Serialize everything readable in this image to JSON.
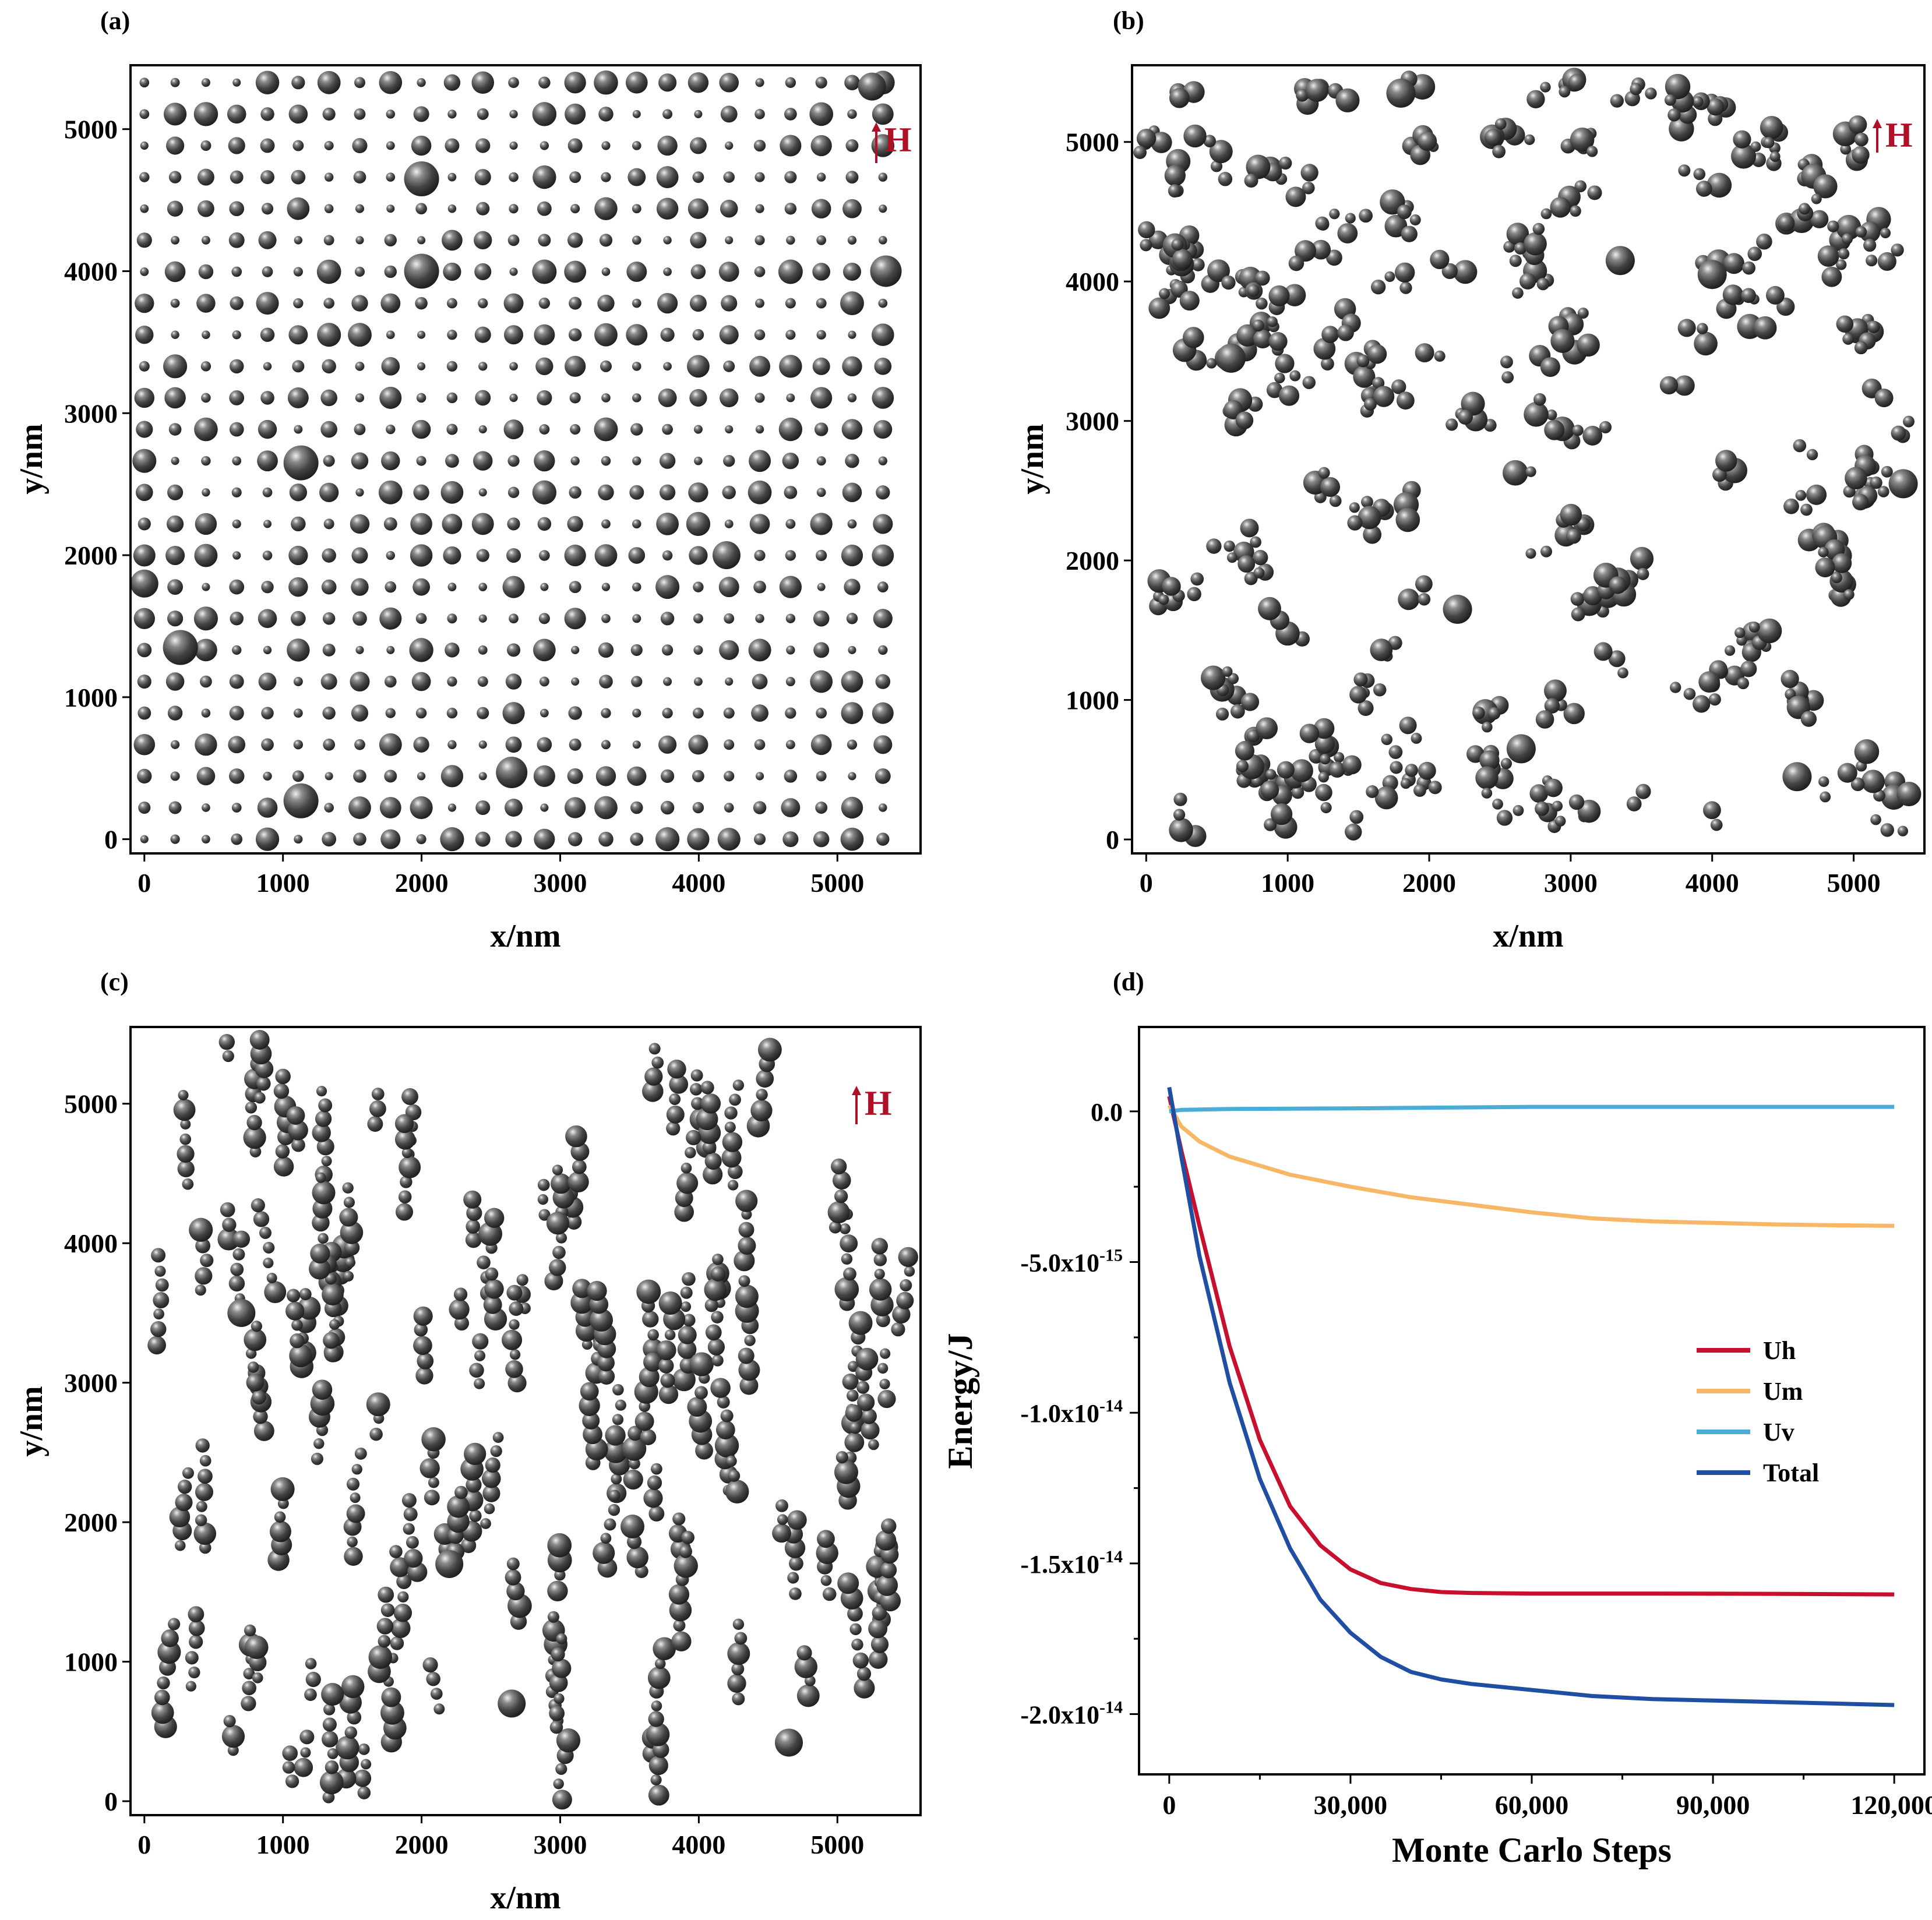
{
  "figure": {
    "panels": [
      {
        "label": "(a)",
        "xlabel": "x/nm",
        "ylabel": "y/nm",
        "field_label": "H",
        "arrangement": "regular square lattice"
      },
      {
        "label": "(b)",
        "xlabel": "x/nm",
        "ylabel": "y/nm",
        "field_label": "H",
        "arrangement": "random clusters"
      },
      {
        "label": "(c)",
        "xlabel": "x/nm",
        "ylabel": "y/nm",
        "field_label": "H",
        "arrangement": "chains aligned with field"
      },
      {
        "label": "(d)",
        "xlabel": "Monte Carlo Steps",
        "ylabel": "Energy/J"
      }
    ]
  },
  "chart_data": [
    {
      "type": "scatter",
      "panel": "(a)",
      "title": "",
      "xlabel": "x/nm",
      "ylabel": "y/nm",
      "xlim": [
        -100,
        5600
      ],
      "ylim": [
        -100,
        5450
      ],
      "xticks": [
        0,
        1000,
        2000,
        3000,
        4000,
        5000
      ],
      "yticks": [
        0,
        1000,
        2000,
        3000,
        4000,
        5000
      ],
      "particle_grid": {
        "x_start": 0,
        "y_start": 0,
        "spacing": 222,
        "columns": 25,
        "rows": 25
      },
      "large_particles": [
        [
          2000,
          4650
        ],
        [
          2000,
          4000
        ],
        [
          1130,
          2650
        ],
        [
          0,
          1800
        ],
        [
          260,
          1350
        ],
        [
          2650,
          470
        ],
        [
          1130,
          270
        ],
        [
          5250,
          5300
        ],
        [
          4200,
          2000
        ],
        [
          5350,
          4000
        ]
      ],
      "annotation": "H"
    },
    {
      "type": "scatter",
      "panel": "(b)",
      "title": "",
      "xlabel": "x/nm",
      "ylabel": "y/nm",
      "xlim": [
        -100,
        5500
      ],
      "ylim": [
        -100,
        5550
      ],
      "xticks": [
        0,
        1000,
        2000,
        3000,
        4000,
        5000
      ],
      "yticks": [
        0,
        1000,
        2000,
        3000,
        4000,
        5000
      ],
      "clusters": [
        [
          600,
          3450
        ],
        [
          2200,
          1650
        ],
        [
          2650,
          650
        ],
        [
          4600,
          450
        ],
        [
          5350,
          2550
        ],
        [
          3350,
          4150
        ],
        [
          1800,
          5350
        ],
        [
          4000,
          4050
        ]
      ],
      "annotation": "H"
    },
    {
      "type": "scatter",
      "panel": "(c)",
      "title": "",
      "xlabel": "x/nm",
      "ylabel": "y/nm",
      "xlim": [
        -100,
        5600
      ],
      "ylim": [
        -100,
        5550
      ],
      "xticks": [
        0,
        1000,
        2000,
        3000,
        4000,
        5000
      ],
      "yticks": [
        0,
        1000,
        2000,
        3000,
        4000,
        5000
      ],
      "chain_orientation": "vertical",
      "annotation": "H"
    },
    {
      "type": "line",
      "panel": "(d)",
      "title": "",
      "xlabel": "Monte Carlo Steps",
      "ylabel": "Energy/J",
      "xlim": [
        -5000,
        125000
      ],
      "ylim": [
        -2.2e-14,
        2.8e-15
      ],
      "xticks": [
        0,
        30000,
        60000,
        90000,
        120000
      ],
      "xtick_labels": [
        "0",
        "30,000",
        "60,000",
        "90,000",
        "120,000"
      ],
      "yticks": [
        0,
        -5e-15,
        -1e-14,
        -1.5e-14,
        -2e-14
      ],
      "ytick_labels": [
        {
          "mantissa": "0.0",
          "exponent": ""
        },
        {
          "mantissa": "-5.0x10",
          "exponent": "-15"
        },
        {
          "mantissa": "-1.0x10",
          "exponent": "-14"
        },
        {
          "mantissa": "-1.5x10",
          "exponent": "-14"
        },
        {
          "mantissa": "-2.0x10",
          "exponent": "-14"
        }
      ],
      "legend_position": "right",
      "series": [
        {
          "name": "Uh",
          "color": "#c8102e",
          "x": [
            0,
            2000,
            5000,
            10000,
            15000,
            20000,
            25000,
            30000,
            35000,
            40000,
            45000,
            50000,
            60000,
            80000,
            100000,
            120000
          ],
          "y": [
            5e-16,
            -1.3e-15,
            -3.8e-15,
            -7.8e-15,
            -1.09e-14,
            -1.31e-14,
            -1.44e-14,
            -1.52e-14,
            -1.565e-14,
            -1.585e-14,
            -1.595e-14,
            -1.598e-14,
            -1.6e-14,
            -1.6e-14,
            -1.601e-14,
            -1.603e-14
          ]
        },
        {
          "name": "Um",
          "color": "#f7b766",
          "x": [
            0,
            2000,
            5000,
            10000,
            20000,
            30000,
            40000,
            50000,
            60000,
            70000,
            80000,
            90000,
            100000,
            110000,
            120000
          ],
          "y": [
            2e-16,
            -5e-16,
            -1e-15,
            -1.5e-15,
            -2.1e-15,
            -2.5e-15,
            -2.85e-15,
            -3.1e-15,
            -3.35e-15,
            -3.55e-15,
            -3.65e-15,
            -3.7e-15,
            -3.75e-15,
            -3.78e-15,
            -3.8e-15
          ]
        },
        {
          "name": "Uv",
          "color": "#4bacd6",
          "x": [
            0,
            2000,
            10000,
            30000,
            60000,
            90000,
            120000
          ],
          "y": [
            0.0,
            5e-17,
            8e-17,
            1e-16,
            1.5e-16,
            1.5e-16,
            1.5e-16
          ]
        },
        {
          "name": "Total",
          "color": "#1f4ea3",
          "x": [
            0,
            2000,
            5000,
            10000,
            15000,
            20000,
            25000,
            30000,
            35000,
            40000,
            45000,
            50000,
            60000,
            70000,
            80000,
            90000,
            100000,
            110000,
            120000
          ],
          "y": [
            8e-16,
            -1.5e-15,
            -4.8e-15,
            -9e-15,
            -1.22e-14,
            -1.45e-14,
            -1.62e-14,
            -1.73e-14,
            -1.81e-14,
            -1.86e-14,
            -1.885e-14,
            -1.9e-14,
            -1.92e-14,
            -1.94e-14,
            -1.95e-14,
            -1.955e-14,
            -1.96e-14,
            -1.965e-14,
            -1.97e-14
          ]
        }
      ]
    }
  ]
}
